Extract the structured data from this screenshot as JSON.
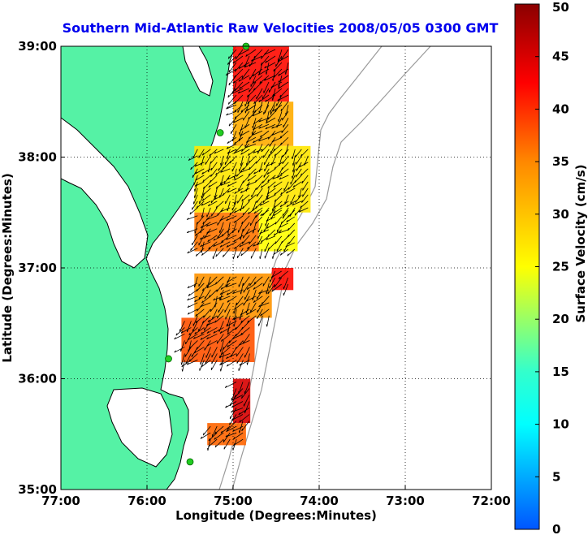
{
  "chart_data": {
    "type": "heatmap",
    "title": "Southern Mid-Atlantic Raw Velocities 2008/05/05 0300 GMT",
    "xlabel": "Longitude (Degrees:Minutes)",
    "ylabel": "Latitude (Degrees:Minutes)",
    "colorbar_label": "Surface Velocity (cm/s)",
    "xlim": [
      -77,
      -72
    ],
    "ylim": [
      35,
      39
    ],
    "clim": [
      0,
      50
    ],
    "x_ticks": [
      {
        "value": -77,
        "label": "77:00"
      },
      {
        "value": -76,
        "label": "76:00"
      },
      {
        "value": -75,
        "label": "75:00"
      },
      {
        "value": -74,
        "label": "74:00"
      },
      {
        "value": -73,
        "label": "73:00"
      },
      {
        "value": -72,
        "label": "72:00"
      }
    ],
    "y_ticks": [
      {
        "value": 35,
        "label": "35:00"
      },
      {
        "value": 36,
        "label": "36:00"
      },
      {
        "value": 37,
        "label": "37:00"
      },
      {
        "value": 38,
        "label": "38:00"
      },
      {
        "value": 39,
        "label": "39:00"
      }
    ],
    "colorbar_ticks": [
      0,
      5,
      10,
      15,
      20,
      25,
      30,
      35,
      40,
      45,
      50
    ],
    "grid": "dotted",
    "colors": {
      "land": "#55f2a5",
      "title": "#0000ee",
      "coastline": "#000000",
      "bathymetry": "#9a9a9a",
      "station": "#22cc22"
    },
    "stations": [
      {
        "lon": -74.85,
        "lat": 39.0
      },
      {
        "lon": -75.15,
        "lat": 38.22
      },
      {
        "lon": -75.75,
        "lat": 36.18
      },
      {
        "lon": -75.5,
        "lat": 35.25
      }
    ],
    "velocity_regions": [
      {
        "lon": [
          -75.0,
          -74.35
        ],
        "lat": [
          38.5,
          39.0
        ],
        "speed": 42
      },
      {
        "lon": [
          -75.0,
          -74.3
        ],
        "lat": [
          38.1,
          38.5
        ],
        "speed": 32
      },
      {
        "lon": [
          -75.45,
          -74.1
        ],
        "lat": [
          37.5,
          38.1
        ],
        "speed": 27
      },
      {
        "lon": [
          -75.45,
          -74.7
        ],
        "lat": [
          37.15,
          37.5
        ],
        "speed": 36
      },
      {
        "lon": [
          -74.7,
          -74.25
        ],
        "lat": [
          37.15,
          37.55
        ],
        "speed": 25
      },
      {
        "lon": [
          -75.45,
          -74.55
        ],
        "lat": [
          36.55,
          36.95
        ],
        "speed": 34
      },
      {
        "lon": [
          -74.55,
          -74.3
        ],
        "lat": [
          36.8,
          37.0
        ],
        "speed": 42
      },
      {
        "lon": [
          -75.6,
          -74.75
        ],
        "lat": [
          36.15,
          36.55
        ],
        "speed": 38
      },
      {
        "lon": [
          -75.0,
          -74.8
        ],
        "lat": [
          35.6,
          36.0
        ],
        "speed": 45
      },
      {
        "lon": [
          -75.3,
          -74.85
        ],
        "lat": [
          35.4,
          35.6
        ],
        "speed": 37
      }
    ]
  }
}
